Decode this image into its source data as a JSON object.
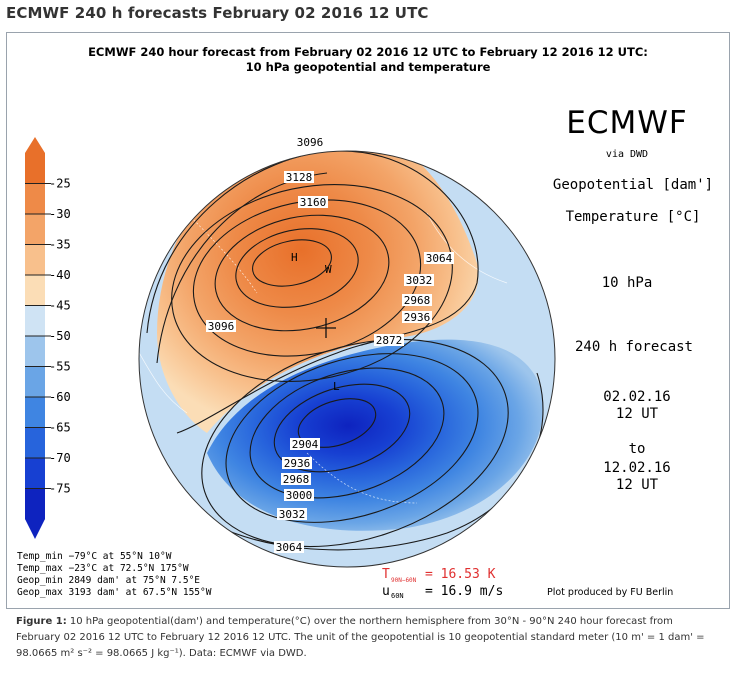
{
  "page_title": "ECMWF 240 h forecasts February 02 2016 12 UTC",
  "figure": {
    "title_line1": "ECMWF 240 hour forecast from February 02 2016 12 UTC to February 12 2016 12 UTC:",
    "title_line2": "10 hPa geopotential and temperature",
    "brand": "ECMWF",
    "brand_sub": "via DWD",
    "geopotential_label": "Geopotential [dam']",
    "temperature_label": "Temperature [°C]",
    "level": "10 hPa",
    "lead_time": "240 h forecast",
    "date_from": "02.02.16",
    "time_from": "12 UT",
    "to_word": "to",
    "date_to": "12.02.16",
    "time_to": "12 UT",
    "credit": "Plot produced by FU Berlin"
  },
  "colorbar": {
    "labels": [
      "-25",
      "-30",
      "-35",
      "-40",
      "-45",
      "-50",
      "-55",
      "-60",
      "-65",
      "-70",
      "-75"
    ],
    "colors": [
      "#e8702a",
      "#ee8a48",
      "#f3a468",
      "#f8c08c",
      "#fbddb6",
      "#cfe3f4",
      "#9dc5ec",
      "#6aa5e6",
      "#3f85e2",
      "#2764dc",
      "#1740d2",
      "#0e23bf"
    ]
  },
  "map": {
    "contour_labels": [
      "3096",
      "3128",
      "3160",
      "3064",
      "3032",
      "2968",
      "2936",
      "3096",
      "2872",
      "2904",
      "2936",
      "2968",
      "3000",
      "3032",
      "3064"
    ],
    "high_marker": "H",
    "low_marker": "L",
    "warm_marker": "W"
  },
  "stats": {
    "temp_min": "Temp_min  −79°C at 55°N 10°W",
    "temp_max": "Temp_max  −23°C at 72.5°N 175°W",
    "geop_min": "Geop_min 2849 dam' at 75°N 7.5°E",
    "geop_max": "Geop_max 3193 dam' at 67.5°N 155°W"
  },
  "indices": {
    "t_label": "T",
    "t_sub": "90N−60N",
    "t_value": "= 16.53 K",
    "t_color": "#e03030",
    "u_label": "u",
    "u_sub": "60N",
    "u_value": "= 16.9 m/s"
  },
  "caption": {
    "label": "Figure 1:",
    "text": " 10 hPa geopotential(dam') and temperature(°C) over the northern hemisphere from 30°N - 90°N 240 hour forecast from February 02 2016 12 UTC to February 12 2016 12 UTC. The unit of the geopotential is 10 geopotential standard meter (10 m' = 1 dam' = 98.0665 m² s⁻² = 98.0665 J kg⁻¹). Data: ECMWF via DWD."
  }
}
